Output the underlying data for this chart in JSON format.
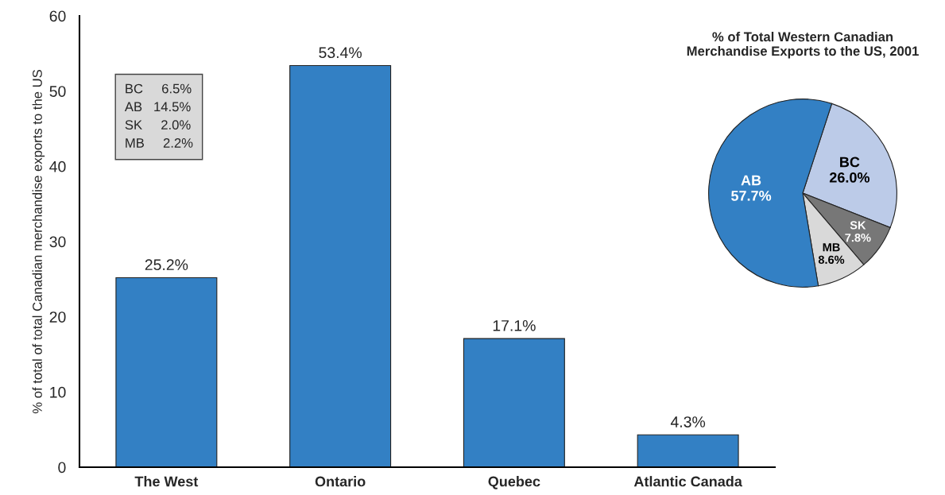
{
  "chart_data": [
    {
      "type": "bar",
      "ylabel": "% of total of total Canadian merchandise exports to the US",
      "categories": [
        "The West",
        "Ontario",
        "Quebec",
        "Atlantic Canada"
      ],
      "values": [
        25.2,
        53.4,
        17.1,
        4.3
      ],
      "color": "#3380c4",
      "value_labels": [
        "25.2%",
        "53.4%",
        "17.1%",
        "4.3%"
      ],
      "ylim": [
        0,
        60
      ],
      "yticks": [
        0,
        10,
        20,
        30,
        40,
        50,
        60
      ],
      "grid": false,
      "annotations": [
        "BC     6.5%",
        "AB   14.5%",
        "SK     2.0%",
        "MB     2.2%"
      ]
    },
    {
      "type": "pie",
      "title": "% of Total Western Canadian\nMerchandise Exports to the US, 2001",
      "categories": [
        "BC",
        "SK",
        "MB",
        "AB"
      ],
      "values": [
        26.0,
        7.8,
        8.6,
        57.7
      ],
      "colors": [
        "#bccbe8",
        "#777777",
        "#d9d9d9",
        "#3380c4"
      ],
      "value_labels": [
        "26.0%",
        "7.8%",
        "8.6%",
        "57.7%"
      ],
      "legend": false
    }
  ]
}
